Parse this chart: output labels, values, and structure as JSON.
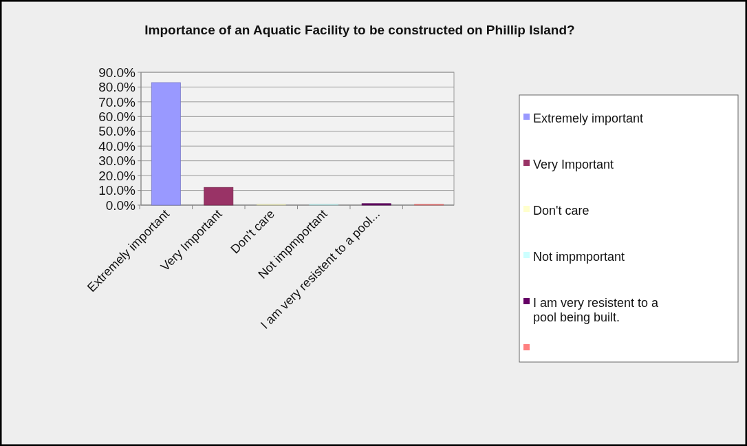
{
  "chart_data": {
    "type": "bar",
    "title": "Importance of an Aquatic Facility to be constructed on Phillip Island?",
    "categories": [
      "Extremely important",
      "Very Important",
      "Don't care",
      "Not impmportant",
      "I am very resistent to a pool...",
      null
    ],
    "series": [
      {
        "name": "Extremely important",
        "color": "#9999ff",
        "values": [
          83,
          null,
          null,
          null,
          null,
          null
        ]
      },
      {
        "name": "Very Important",
        "color": "#993366",
        "values": [
          null,
          12,
          null,
          null,
          null,
          null
        ]
      },
      {
        "name": "Don't care",
        "color": "#ffffcc",
        "values": [
          null,
          null,
          0.5,
          null,
          null,
          null
        ]
      },
      {
        "name": "Not impmportant",
        "color": "#ccffff",
        "values": [
          null,
          null,
          null,
          0.5,
          null,
          null
        ]
      },
      {
        "name": "I am very resistent to a pool being built.",
        "color": "#660066",
        "values": [
          null,
          null,
          null,
          null,
          1,
          null
        ]
      },
      {
        "color": "#ff8080",
        "values": [
          null,
          null,
          null,
          null,
          null,
          0.5
        ]
      }
    ],
    "ylim": [
      0,
      90
    ],
    "yticks": [
      {
        "value": 0,
        "label": "0.0%"
      },
      {
        "value": 10,
        "label": "10.0%"
      },
      {
        "value": 20,
        "label": "20.0%"
      },
      {
        "value": 30,
        "label": "30.0%"
      },
      {
        "value": 40,
        "label": "40.0%"
      },
      {
        "value": 50,
        "label": "50.0%"
      },
      {
        "value": 60,
        "label": "60.0%"
      },
      {
        "value": 70,
        "label": "70.0%"
      },
      {
        "value": 80,
        "label": "80.0%"
      },
      {
        "value": 90,
        "label": "90.0%"
      }
    ],
    "grid": "y",
    "legend": "right"
  }
}
